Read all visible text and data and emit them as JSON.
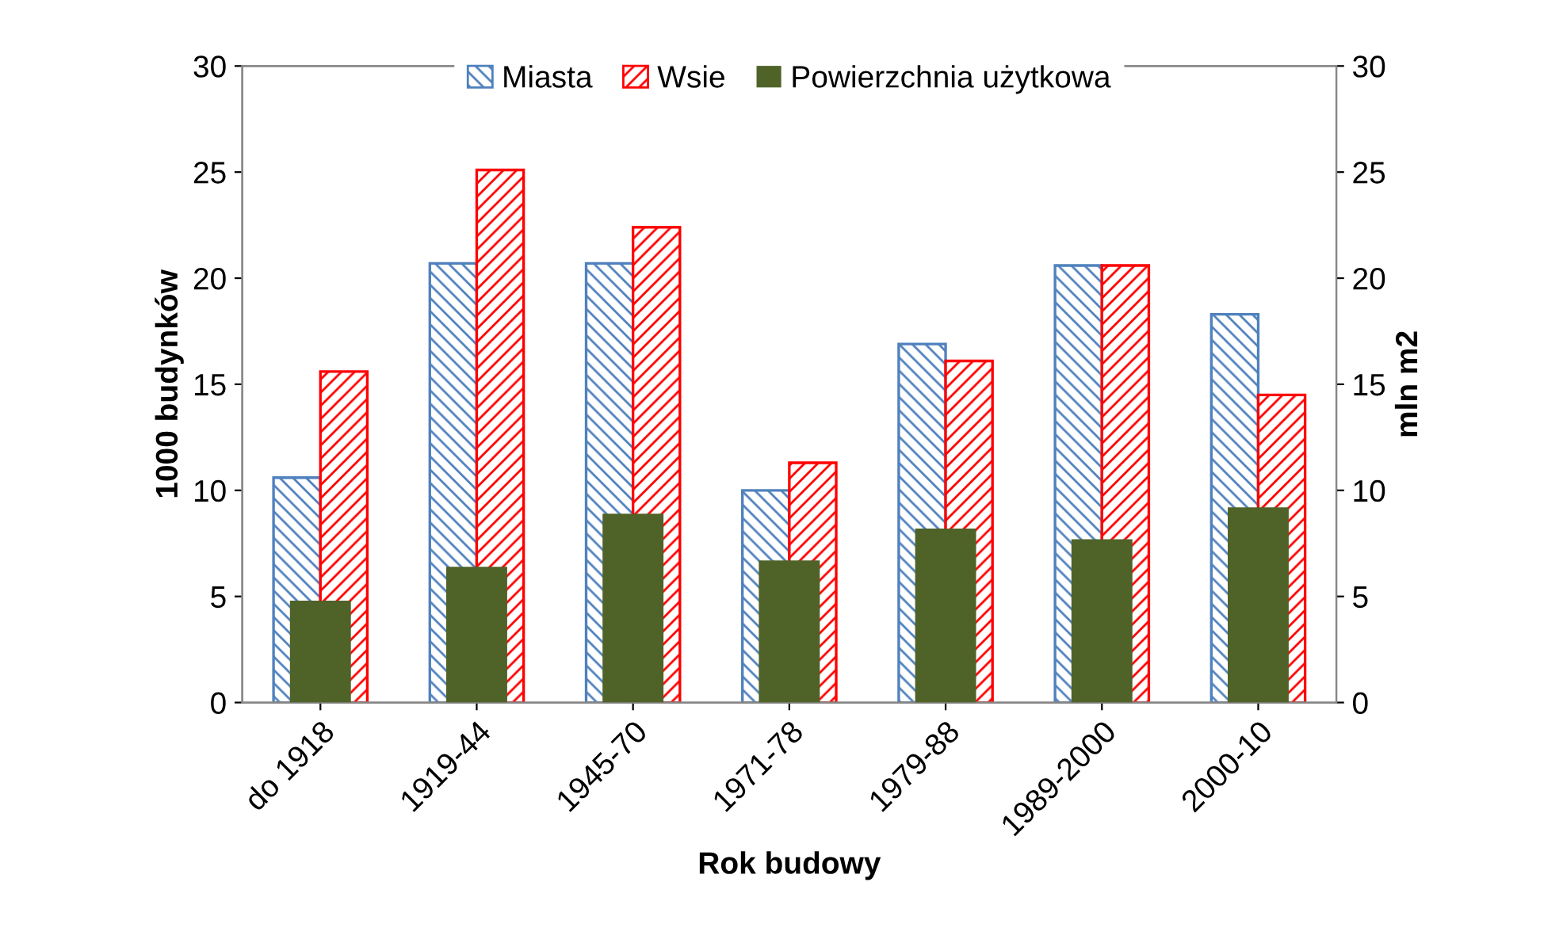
{
  "chart_data": {
    "type": "bar",
    "xlabel": "Rok budowy",
    "ylabel": "1000 budynków",
    "y2label": "mln m2",
    "categories": [
      "do 1918",
      "1919-44",
      "1945-70",
      "1971-78",
      "1979-88",
      "1989-2000",
      "2000-10"
    ],
    "series": [
      {
        "name": "Miasta",
        "color": "#4f81bd",
        "values": [
          10.6,
          20.7,
          20.7,
          10.0,
          16.9,
          20.6,
          18.3
        ]
      },
      {
        "name": "Wsie",
        "color": "#ff0000",
        "values": [
          15.6,
          25.1,
          22.4,
          11.3,
          16.1,
          20.6,
          14.5
        ]
      },
      {
        "name": "Powierzchnia użytkowa",
        "color": "#4f6228",
        "axis": "y2",
        "values": [
          4.8,
          6.4,
          8.9,
          6.7,
          8.2,
          7.7,
          9.2
        ]
      }
    ],
    "ylim": [
      0,
      30
    ],
    "yticks": [
      0,
      5,
      10,
      15,
      20,
      25,
      30
    ],
    "y2lim": [
      0,
      30
    ],
    "y2ticks": [
      0,
      5,
      10,
      15,
      20,
      25,
      30
    ],
    "grid": false,
    "legend": "top"
  }
}
